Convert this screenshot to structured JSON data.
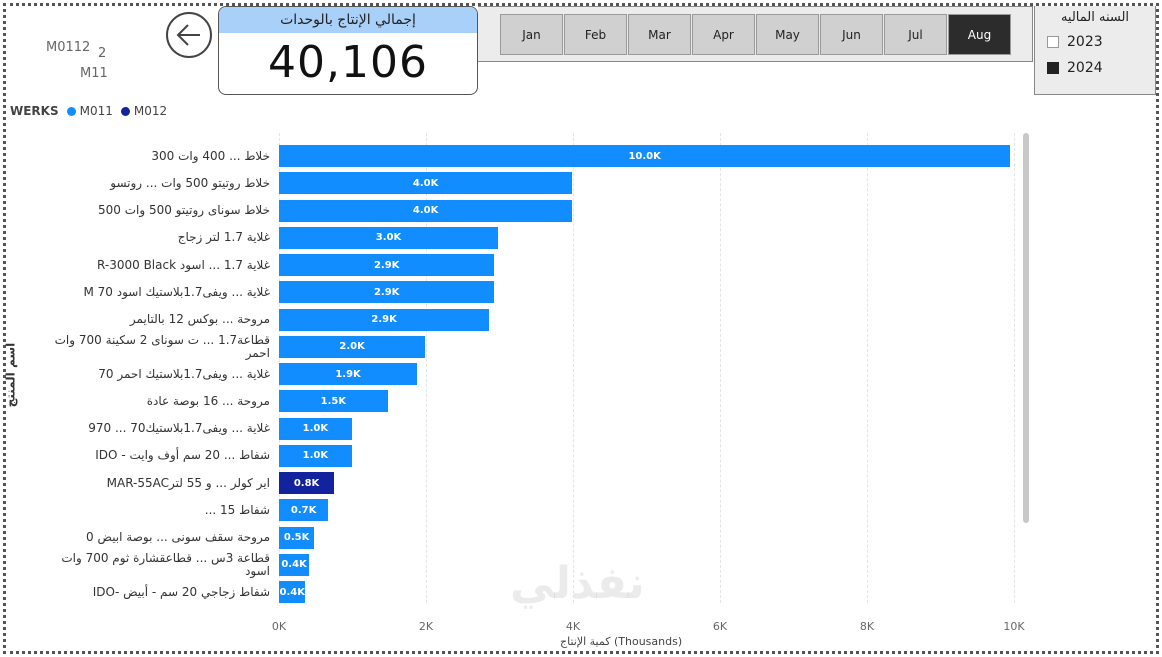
{
  "map_visual": {
    "labels": [
      "M0112",
      "2",
      "M11"
    ]
  },
  "back_button": {
    "icon": "arrow-left-icon"
  },
  "kpi": {
    "title": "إجمالي الإنتاج بالوحدات",
    "value": "40,106"
  },
  "month_slicer": {
    "items": [
      "Jan",
      "Feb",
      "Mar",
      "Apr",
      "May",
      "Jun",
      "Jul",
      "Aug"
    ],
    "selected": "Aug"
  },
  "year_slicer": {
    "title": "السنه الماليه",
    "options": [
      {
        "label": "2023",
        "checked": false
      },
      {
        "label": "2024",
        "checked": true
      }
    ]
  },
  "legend": {
    "title": "WERKS",
    "items": [
      {
        "label": "M011",
        "color": "#118dff"
      },
      {
        "label": "M012",
        "color": "#12239e"
      }
    ]
  },
  "watermark": "نفذلي",
  "chart_data": {
    "type": "bar",
    "orientation": "horizontal",
    "xlabel": "كمية الإنتاج (Thousands)",
    "ylabel": "اسم المنتج",
    "xlim": [
      0,
      10
    ],
    "xticks": [
      "0K",
      "2K",
      "4K",
      "6K",
      "8K",
      "10K"
    ],
    "grid": true,
    "legend_position": "top-left",
    "categories": [
      "خلاط ... 400 وات 300",
      "خلاط روتيتو 500 وات ... روتسو",
      "خلاط سوناى روتيتو 500 وات 500",
      "غلاية 1.7 لتر زجاج",
      "غلاية 1.7 ... اسود R-3000 Black",
      "غلاية ... ويفى1.7بلاستيك اسود 70 M",
      "مروحة ... بوكس 12 بالتايمر",
      "قطاعة1.7 ... ت سوناى 2 سكينة 700 وات احمر",
      "غلاية ... ويفى1.7بلاستيك احمر 70",
      "مروحة ... 16 بوصة عادة",
      "غلاية ... ويفى1.7بلاستيك70 ... 970",
      "شفاط ... 20 سم أوف وايت - IDO",
      "اير كولر ... و 55 لترMAR-55AC",
      "شفاط 15 ...",
      "مروحة سقف سونى ... بوصة ابيض 0",
      "قطاعة 3س ... قطاعقشارة ثوم 700 وات اسود",
      "شفاط زجاجي 20 سم - أبيض -IDO"
    ],
    "values": [
      9.95,
      3.99,
      3.99,
      2.98,
      2.93,
      2.93,
      2.86,
      1.99,
      1.88,
      1.48,
      0.99,
      0.99,
      0.75,
      0.67,
      0.48,
      0.41,
      0.36
    ],
    "data_labels": [
      "10.0K",
      "4.0K",
      "4.0K",
      "3.0K",
      "2.9K",
      "2.9K",
      "2.9K",
      "2.0K",
      "1.9K",
      "1.5K",
      "1.0K",
      "1.0K",
      "0.8K",
      "0.7K",
      "0.5K",
      "0.4K",
      "0.4K"
    ],
    "series_by_bar": [
      "M011",
      "M011",
      "M011",
      "M011",
      "M011",
      "M011",
      "M011",
      "M011",
      "M011",
      "M011",
      "M011",
      "M011",
      "M012",
      "M011",
      "M011",
      "M011",
      "M011"
    ]
  }
}
